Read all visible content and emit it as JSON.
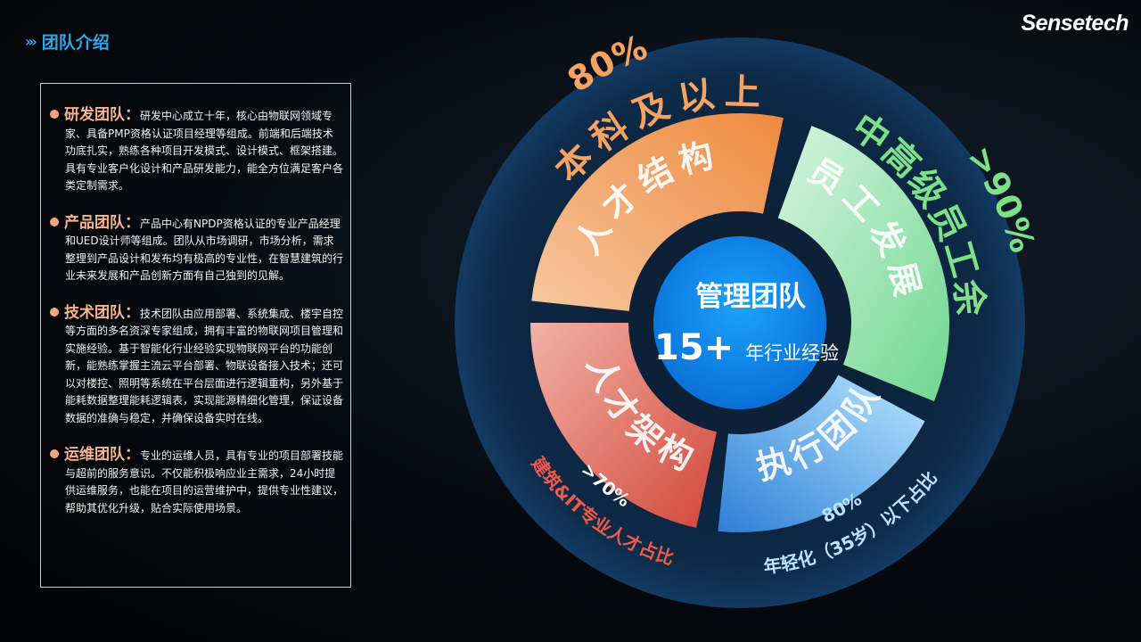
{
  "header": {
    "title": "团队介绍",
    "chevron_icon": "triple-chevron-right"
  },
  "logo": "Sensetech",
  "teams": [
    {
      "name": "研发团队",
      "sep": "：",
      "text": "研发中心成立十年，核心由物联网领域专家、具备PMP资格认证项目经理等组成。前端和后端技术功底扎实，熟练各种项目开发模式、设计模式、框架搭建。具有专业客户化设计和产品研发能力，能全方位满足客户各类定制需求。"
    },
    {
      "name": "产品团队",
      "sep": "：",
      "text": "产品中心有NPDP资格认证的专业产品经理和UED设计师等组成。团队从市场调研，市场分析，需求整理到产品设计和发布均有极高的专业性，在智慧建筑的行业未来发展和产品创新方面有自己独到的见解。"
    },
    {
      "name": "技术团队",
      "sep": "：",
      "text": "技术团队由应用部署、系统集成、楼宇自控等方面的多名资深专家组成，拥有丰富的物联网项目管理和实施经验。基于智能化行业经验实现物联网平台的功能创新，能熟练掌握主流云平台部署、物联设备接入技术；还可以对楼控、照明等系统在平台层面进行逻辑重构，另外基于能耗数据整理能耗逻辑表，实现能源精细化管理，保证设备数据的准确与稳定，并确保设备实时在线。"
    },
    {
      "name": "运维团队",
      "sep": "：",
      "text": "专业的运维人员，具有专业的项目部署技能与超前的服务意识。不仅能积极响应业主需求，24小时提供运维服务，也能在项目的运营维护中，提供专业性建议，帮助其优化升级，贴合实际使用场景。"
    }
  ],
  "wheel": {
    "center": {
      "title": "管理团队",
      "number": "15+",
      "suffix": "年行业经验"
    },
    "segments": [
      {
        "label": "人才结构",
        "outer": "本科及以上",
        "pct": "80%",
        "color": "#f29a55"
      },
      {
        "label": "员工发展",
        "outer": "中高级员工余",
        "pct": ">90%",
        "color": "#8fe0a8"
      },
      {
        "label": "执行团队",
        "outer": "年轻化（35岁）以下占比",
        "pct": "80%",
        "color": "#5aa8e8"
      },
      {
        "label": "人才架构",
        "outer": "建筑&IT专业人才占比",
        "pct": ">70%",
        "color": "#e0645a"
      }
    ]
  }
}
